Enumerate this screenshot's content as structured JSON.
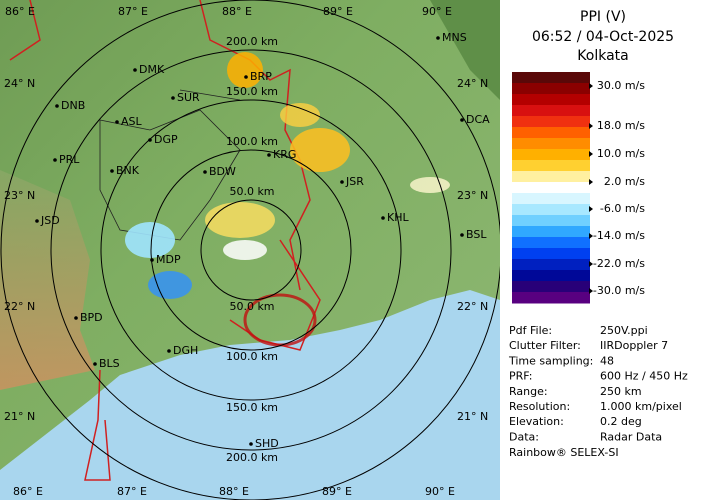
{
  "header": {
    "title": "PPI (V)",
    "time": "06:52 / 04-Oct-2025",
    "station": "Kolkata"
  },
  "legend": {
    "labels": [
      "30.0 m/s",
      "18.0 m/s",
      "10.0 m/s",
      "2.0 m/s",
      "-6.0 m/s",
      "-14.0 m/s",
      "-22.0 m/s",
      "-30.0 m/s"
    ]
  },
  "info": {
    "rows": [
      [
        "Pdf File:",
        "250V.ppi"
      ],
      [
        "Clutter Filter:",
        "IIRDoppler 7"
      ],
      [
        "Time sampling:",
        "48"
      ],
      [
        "PRF:",
        "600 Hz / 450 Hz"
      ],
      [
        "Range:",
        "250 km"
      ],
      [
        "Resolution:",
        "1.000 km/pixel"
      ],
      [
        "Elevation:",
        "0.2 deg"
      ],
      [
        "Data:",
        "Radar Data"
      ]
    ],
    "footer": "Rainbow® SELEX-SI"
  },
  "map": {
    "lon_labels_top": [
      "86° E",
      "87° E",
      "88° E",
      "89° E",
      "90° E"
    ],
    "lon_labels_bottom": [
      "86° E",
      "87° E",
      "88° E",
      "89° E",
      "90° E"
    ],
    "lat_labels_left": [
      "24° N",
      "23° N",
      "22° N",
      "21° N"
    ],
    "lat_labels_right": [
      "24° N",
      "23° N",
      "22° N",
      "21° N"
    ],
    "range_labels_top": [
      "200.0 km",
      "150.0 km",
      "100.0 km",
      "50.0 km"
    ],
    "range_labels_bottom": [
      "50.0 km",
      "100.0 km",
      "150.0 km",
      "200.0 km"
    ],
    "cities": [
      "MNS",
      "DMK",
      "BRP",
      "DNB",
      "SUR",
      "ASL",
      "DCA",
      "DGP",
      "PRL",
      "KRG",
      "BNK",
      "BDW",
      "JSR",
      "JSD",
      "KHL",
      "BSL",
      "MDP",
      "BPD",
      "DGH",
      "BLS",
      "SHD"
    ]
  }
}
